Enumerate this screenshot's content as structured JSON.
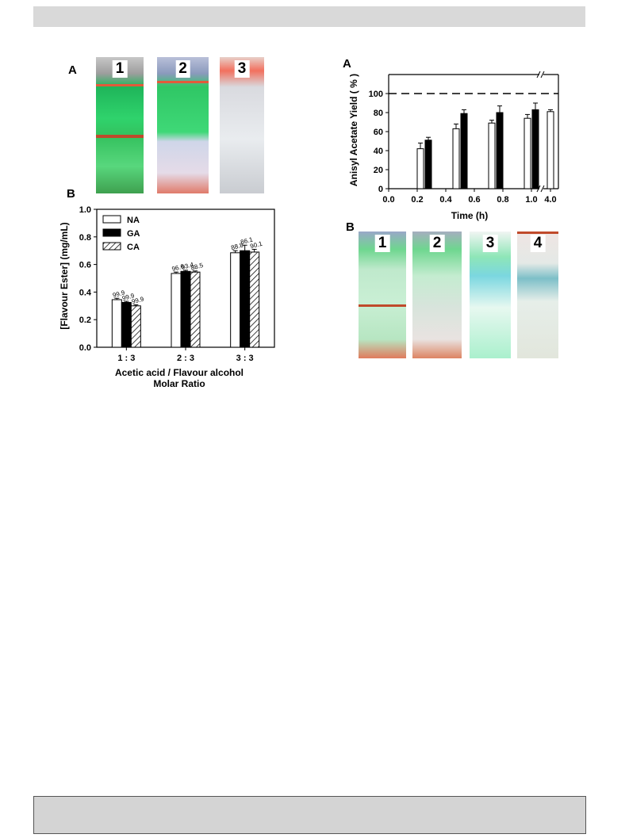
{
  "page": {
    "labels": {
      "left_top": "A",
      "left_bottom": "B",
      "right_top": "A",
      "right_bottom": "B"
    }
  },
  "photos_left": [
    {
      "number": "1"
    },
    {
      "number": "2"
    },
    {
      "number": "3"
    }
  ],
  "photos_right": [
    {
      "number": "1"
    },
    {
      "number": "2"
    },
    {
      "number": "3"
    },
    {
      "number": "4"
    }
  ],
  "chart_data": [
    {
      "id": "flavour-ester",
      "type": "bar",
      "ylabel": "[Flavour Ester]  (mg/mL)",
      "xlabel": "Acetic acid / Flavour alcohol",
      "xlabel2": "Molar Ratio",
      "ylim": [
        0,
        1.0
      ],
      "yticks": [
        "0.0",
        "0.2",
        "0.4",
        "0.6",
        "0.8",
        "1.0"
      ],
      "categories": [
        "1 : 3",
        "2 : 3",
        "3 : 3"
      ],
      "legend_position": "top-left",
      "series": [
        {
          "name": "NA",
          "fill": "white",
          "values": [
            0.345,
            0.535,
            0.685
          ],
          "errors": [
            0.01,
            0.01,
            0.015
          ],
          "labels": [
            "99.9",
            "96.6",
            "88.8"
          ]
        },
        {
          "name": "GA",
          "fill": "black",
          "values": [
            0.325,
            0.55,
            0.7
          ],
          "errors": [
            0.008,
            0.008,
            0.04
          ],
          "labels": [
            "99.9",
            "93.4",
            "86.1"
          ]
        },
        {
          "name": "CA",
          "fill": "hatch",
          "values": [
            0.3,
            0.545,
            0.69
          ],
          "errors": [
            0.008,
            0.008,
            0.02
          ],
          "labels": [
            "99.9",
            "88.5",
            "90.1"
          ]
        }
      ]
    },
    {
      "id": "anisyl-yield",
      "type": "bar",
      "ylabel": "Anisyl Acetate Yield ( % )",
      "xlabel": "Time (h)",
      "ylim": [
        0,
        120
      ],
      "yticks": [
        "0",
        "20",
        "40",
        "60",
        "80",
        "100"
      ],
      "xticks": [
        "0.0",
        "0.2",
        "0.4",
        "0.6",
        "0.8",
        "1.0",
        "4.0"
      ],
      "reference_line": 100,
      "axis_break": true,
      "groups": [
        {
          "x": 0.25,
          "white": 42,
          "white_err": 6,
          "black": 51,
          "black_err": 3
        },
        {
          "x": 0.5,
          "white": 63,
          "white_err": 5,
          "black": 79,
          "black_err": 4
        },
        {
          "x": 0.75,
          "white": 69,
          "white_err": 3,
          "black": 80,
          "black_err": 7
        },
        {
          "x": 1.0,
          "white": 74,
          "white_err": 4,
          "black": 83,
          "black_err": 7
        },
        {
          "x": 4.0,
          "white": 81,
          "white_err": 2
        }
      ]
    }
  ]
}
